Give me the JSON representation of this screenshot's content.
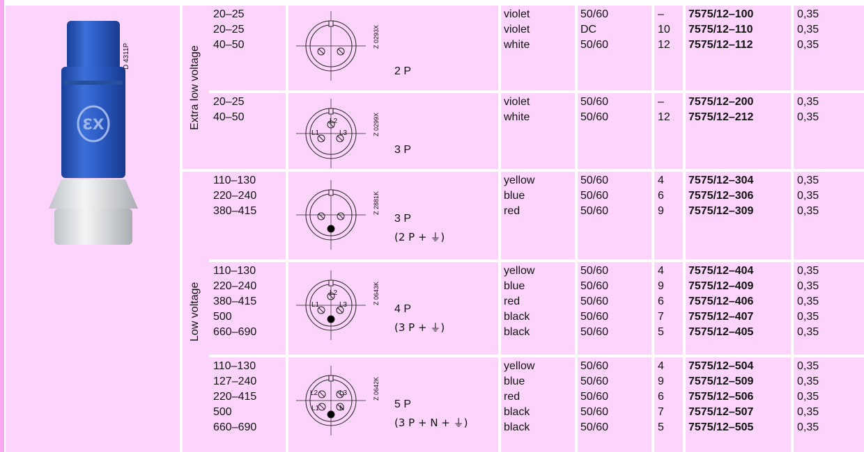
{
  "product_image": {
    "label": "D 4311P"
  },
  "groups": [
    {
      "label": "Extra low voltage",
      "rows": [
        {
          "voltages": [
            "20–25",
            "20–25",
            "40–50"
          ],
          "diagram_code": "Z 0293X",
          "pin_labels": [],
          "poles": "2 P",
          "colors": [
            "violet",
            "violet",
            "white"
          ],
          "frequencies": [
            "50/60",
            "DC",
            "50/60"
          ],
          "numbers": [
            "–",
            "10",
            "12"
          ],
          "order_numbers": [
            "7575/12–100",
            "7575/12–110",
            "7575/12–112"
          ],
          "weights": [
            "0,35",
            "0,35",
            "0,35"
          ]
        },
        {
          "voltages": [
            "20–25",
            "40–50"
          ],
          "diagram_code": "Z 0299X",
          "pin_labels": [
            "L2",
            "L1",
            "L3"
          ],
          "poles": "3 P",
          "colors": [
            "violet",
            "white"
          ],
          "frequencies": [
            "50/60",
            "50/60"
          ],
          "numbers": [
            "–",
            "12"
          ],
          "order_numbers": [
            "7575/12–200",
            "7575/12–212"
          ],
          "weights": [
            "0,35",
            "0,35"
          ]
        }
      ]
    },
    {
      "label": "Low voltage",
      "rows": [
        {
          "voltages": [
            "110–130",
            "220–240",
            "380–415"
          ],
          "diagram_code": "Z 2881K",
          "pin_labels": [],
          "poles": "3 P",
          "poles_note": "(2 P + ⏚)",
          "colors": [
            "yellow",
            "blue",
            "red"
          ],
          "frequencies": [
            "50/60",
            "50/60",
            "50/60"
          ],
          "numbers": [
            "4",
            "6",
            "9"
          ],
          "order_numbers": [
            "7575/12–304",
            "7575/12–306",
            "7575/12–309"
          ],
          "weights": [
            "0,35",
            "0,35",
            "0,35"
          ]
        },
        {
          "voltages": [
            "110–130",
            "220–240",
            "380–415",
            "500",
            "660–690"
          ],
          "diagram_code": "Z 0643K",
          "pin_labels": [
            "L2",
            "L1",
            "L3"
          ],
          "poles": "4 P",
          "poles_note": "(3 P + ⏚)",
          "colors": [
            "yellow",
            "blue",
            "red",
            "black",
            "black"
          ],
          "frequencies": [
            "50/60",
            "50/60",
            "50/60",
            "50/60",
            "50/60"
          ],
          "numbers": [
            "4",
            "9",
            "6",
            "7",
            "5"
          ],
          "order_numbers": [
            "7575/12–404",
            "7575/12–409",
            "7575/12–406",
            "7575/12–407",
            "7575/12–405"
          ],
          "weights": [
            "0,35",
            "0,35",
            "0,35",
            "0,35",
            "0,35"
          ]
        },
        {
          "voltages": [
            "110–130",
            "127–240",
            "220–415",
            "500",
            "660–690"
          ],
          "diagram_code": "Z 0642K",
          "pin_labels": [
            "L2",
            "L3",
            "L1",
            "N"
          ],
          "poles": "5 P",
          "poles_note": "(3 P + N + ⏚)",
          "colors": [
            "yellow",
            "blue",
            "red",
            "black",
            "black"
          ],
          "frequencies": [
            "50/60",
            "50/60",
            "50/60",
            "50/60",
            "50/60"
          ],
          "numbers": [
            "4",
            "9",
            "6",
            "7",
            "5"
          ],
          "order_numbers": [
            "7575/12–504",
            "7575/12–509",
            "7575/12–506",
            "7575/12–507",
            "7575/12–505"
          ],
          "weights": [
            "0,35",
            "0,35",
            "0,35",
            "0,35",
            "0,35"
          ]
        }
      ]
    }
  ]
}
